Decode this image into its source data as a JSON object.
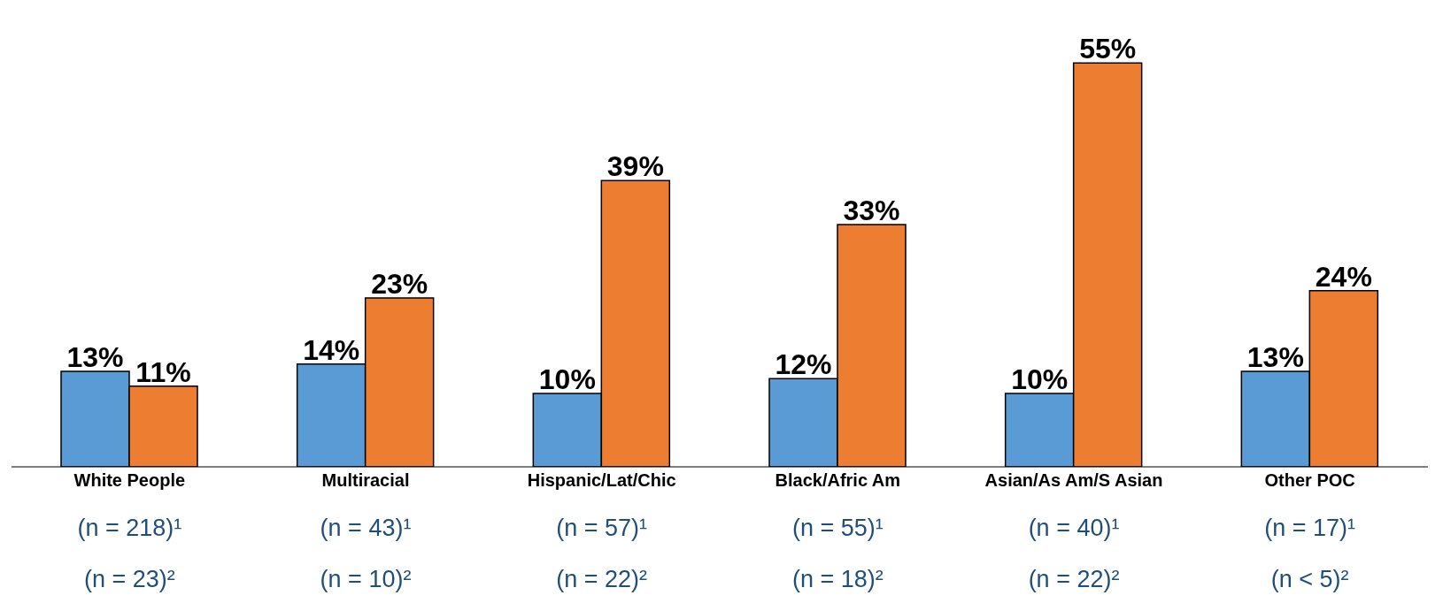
{
  "chart_data": {
    "type": "bar",
    "categories": [
      "White People",
      "Multiracial",
      "Hispanic/Lat/Chic",
      "Black/Afric Am",
      "Asian/As Am/S Asian",
      "Other POC"
    ],
    "series": [
      {
        "color": "#5b9bd5",
        "values": [
          13,
          14,
          10,
          12,
          10,
          13
        ],
        "value_labels": [
          "13%",
          "14%",
          "10%",
          "12%",
          "10%",
          "13%"
        ]
      },
      {
        "color": "#ed7d31",
        "values": [
          11,
          23,
          39,
          33,
          55,
          24
        ],
        "value_labels": [
          "11%",
          "23%",
          "39%",
          "33%",
          "55%",
          "24%"
        ]
      }
    ],
    "annotations": [
      "(n = 218)¹",
      "(n = 43)¹",
      "(n = 57)¹",
      "(n = 55)¹",
      "(n = 40)¹",
      "(n = 17)¹",
      "(n = 23)²",
      "(n = 10)²",
      "(n = 22)²",
      "(n = 18)²",
      "(n = 22)²",
      "(n < 5)²"
    ],
    "data_labels": false
  }
}
